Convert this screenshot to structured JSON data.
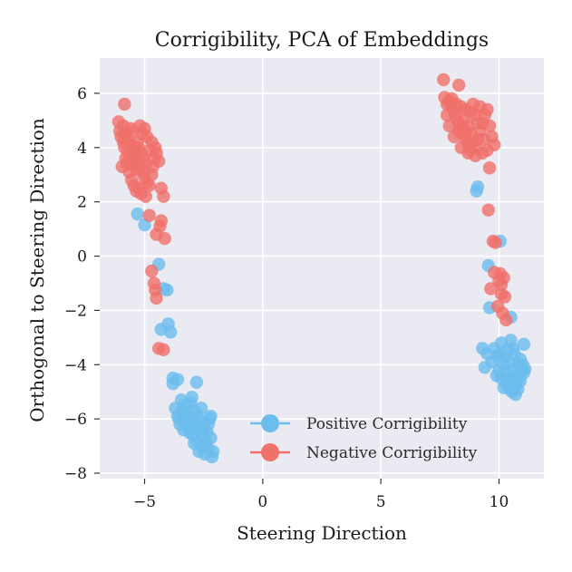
{
  "chart_data": {
    "type": "scatter",
    "title": "Corrigibility, PCA of Embeddings",
    "xlabel": "Steering Direction",
    "ylabel": "Orthogonal to Steering Direction",
    "xlim": [
      -6.9,
      11.9
    ],
    "ylim": [
      -8.2,
      7.3
    ],
    "xticks": [
      -5,
      0,
      5,
      10
    ],
    "xtick_labels": [
      "−5",
      "0",
      "5",
      "10"
    ],
    "yticks": [
      -8,
      -6,
      -4,
      -2,
      0,
      2,
      4,
      6
    ],
    "ytick_labels": [
      "−8",
      "−6",
      "−4",
      "−2",
      "0",
      "2",
      "4",
      "6"
    ],
    "grid": true,
    "legend_position": "lower-right",
    "series": [
      {
        "name": "Positive Corrigibility",
        "color": "#6cbdee",
        "points": [
          [
            -5.3,
            1.55
          ],
          [
            -5.0,
            1.15
          ],
          [
            -4.4,
            -0.3
          ],
          [
            -4.2,
            -1.2
          ],
          [
            -4.05,
            -1.25
          ],
          [
            -4.3,
            -2.7
          ],
          [
            -4.0,
            -2.5
          ],
          [
            -3.9,
            -2.8
          ],
          [
            -3.8,
            -4.7
          ],
          [
            -3.8,
            -4.5
          ],
          [
            -3.6,
            -4.55
          ],
          [
            -2.8,
            -4.65
          ],
          [
            -3.7,
            -5.6
          ],
          [
            -3.6,
            -5.9
          ],
          [
            -3.55,
            -6.0
          ],
          [
            -3.45,
            -5.3
          ],
          [
            -3.4,
            -5.7
          ],
          [
            -3.3,
            -5.5
          ],
          [
            -3.25,
            -6.1
          ],
          [
            -3.2,
            -6.3
          ],
          [
            -3.15,
            -5.8
          ],
          [
            -3.1,
            -6.5
          ],
          [
            -3.05,
            -5.4
          ],
          [
            -3.0,
            -6.0
          ],
          [
            -2.95,
            -6.6
          ],
          [
            -2.9,
            -5.7
          ],
          [
            -2.85,
            -6.2
          ],
          [
            -2.8,
            -6.8
          ],
          [
            -2.75,
            -5.9
          ],
          [
            -2.7,
            -6.4
          ],
          [
            -2.65,
            -6.1
          ],
          [
            -2.6,
            -7.0
          ],
          [
            -2.55,
            -6.6
          ],
          [
            -2.5,
            -6.3
          ],
          [
            -2.45,
            -7.3
          ],
          [
            -2.4,
            -6.9
          ],
          [
            -2.35,
            -6.5
          ],
          [
            -2.3,
            -7.1
          ],
          [
            -2.25,
            -6.0
          ],
          [
            -2.2,
            -6.7
          ],
          [
            -2.15,
            -7.4
          ],
          [
            -2.1,
            -7.2
          ],
          [
            -3.35,
            -6.4
          ],
          [
            -2.9,
            -6.9
          ],
          [
            -3.0,
            -5.2
          ],
          [
            -2.6,
            -5.6
          ],
          [
            -2.3,
            -6.2
          ],
          [
            -2.2,
            -5.9
          ],
          [
            -3.5,
            -6.2
          ],
          [
            -2.7,
            -7.2
          ],
          [
            9.1,
            2.55
          ],
          [
            9.05,
            2.4
          ],
          [
            10.05,
            0.55
          ],
          [
            9.55,
            -0.35
          ],
          [
            9.6,
            -1.9
          ],
          [
            10.5,
            -2.25
          ],
          [
            10.1,
            -3.2
          ],
          [
            9.8,
            -3.4
          ],
          [
            9.3,
            -3.4
          ],
          [
            10.5,
            -3.1
          ],
          [
            11.05,
            -3.25
          ],
          [
            9.5,
            -3.6
          ],
          [
            9.7,
            -3.9
          ],
          [
            9.4,
            -4.1
          ],
          [
            9.9,
            -4.4
          ],
          [
            10.2,
            -4.0
          ],
          [
            10.3,
            -4.3
          ],
          [
            10.4,
            -3.9
          ],
          [
            10.5,
            -4.6
          ],
          [
            10.6,
            -4.2
          ],
          [
            10.65,
            -3.6
          ],
          [
            10.7,
            -4.8
          ],
          [
            10.75,
            -4.4
          ],
          [
            10.8,
            -4.0
          ],
          [
            10.85,
            -4.5
          ],
          [
            10.9,
            -3.8
          ],
          [
            10.95,
            -4.2
          ],
          [
            11.0,
            -4.0
          ],
          [
            11.05,
            -4.3
          ],
          [
            11.1,
            -4.15
          ],
          [
            10.55,
            -5.0
          ],
          [
            10.45,
            -4.9
          ],
          [
            10.3,
            -4.7
          ],
          [
            10.25,
            -3.7
          ],
          [
            10.1,
            -4.5
          ],
          [
            10.0,
            -4.2
          ],
          [
            9.95,
            -3.7
          ],
          [
            10.6,
            -3.4
          ],
          [
            10.8,
            -4.9
          ],
          [
            10.7,
            -5.1
          ],
          [
            10.4,
            -4.5
          ],
          [
            10.9,
            -4.6
          ],
          [
            10.2,
            -4.85
          ],
          [
            10.0,
            -3.6
          ],
          [
            10.35,
            -3.45
          ]
        ]
      },
      {
        "name": "Negative Corrigibility",
        "color": "#f0716a",
        "points": [
          [
            -5.85,
            5.6
          ],
          [
            -6.1,
            4.95
          ],
          [
            -5.9,
            4.8
          ],
          [
            -5.8,
            4.5
          ],
          [
            -5.7,
            4.3
          ],
          [
            -5.6,
            4.1
          ],
          [
            -5.5,
            3.9
          ],
          [
            -5.4,
            3.7
          ],
          [
            -5.3,
            3.5
          ],
          [
            -5.2,
            3.3
          ],
          [
            -5.1,
            3.1
          ],
          [
            -5.0,
            2.9
          ],
          [
            -4.9,
            2.7
          ],
          [
            -5.75,
            3.4
          ],
          [
            -5.65,
            3.1
          ],
          [
            -5.55,
            2.8
          ],
          [
            -5.45,
            2.6
          ],
          [
            -5.35,
            2.4
          ],
          [
            -5.25,
            2.5
          ],
          [
            -5.15,
            2.3
          ],
          [
            -4.95,
            2.2
          ],
          [
            -4.8,
            2.6
          ],
          [
            -4.7,
            3.0
          ],
          [
            -4.65,
            3.3
          ],
          [
            -4.6,
            3.6
          ],
          [
            -4.55,
            4.0
          ],
          [
            -4.5,
            3.8
          ],
          [
            -4.7,
            4.2
          ],
          [
            -4.8,
            3.9
          ],
          [
            -4.9,
            4.4
          ],
          [
            -5.0,
            4.7
          ],
          [
            -5.1,
            4.5
          ],
          [
            -5.2,
            4.8
          ],
          [
            -5.3,
            4.2
          ],
          [
            -5.4,
            4.0
          ],
          [
            -5.5,
            4.6
          ],
          [
            -5.6,
            4.7
          ],
          [
            -5.7,
            3.8
          ],
          [
            -5.8,
            3.6
          ],
          [
            -5.9,
            4.2
          ],
          [
            -6.0,
            4.4
          ],
          [
            -6.05,
            4.6
          ],
          [
            -5.95,
            3.3
          ],
          [
            -5.85,
            4.0
          ],
          [
            -5.05,
            3.6
          ],
          [
            -4.95,
            3.4
          ],
          [
            -5.15,
            3.8
          ],
          [
            -5.25,
            4.0
          ],
          [
            -5.35,
            3.2
          ],
          [
            -5.45,
            3.5
          ],
          [
            -4.4,
            3.5
          ],
          [
            -4.3,
            2.5
          ],
          [
            -4.2,
            2.2
          ],
          [
            -4.35,
            1.1
          ],
          [
            -4.5,
            0.8
          ],
          [
            -4.3,
            1.3
          ],
          [
            -4.15,
            0.65
          ],
          [
            -4.8,
            1.5
          ],
          [
            -4.7,
            -0.55
          ],
          [
            -4.6,
            -1.0
          ],
          [
            -4.55,
            -1.25
          ],
          [
            -4.5,
            -1.55
          ],
          [
            -4.4,
            -3.4
          ],
          [
            -4.2,
            -3.45
          ],
          [
            7.65,
            6.5
          ],
          [
            8.3,
            6.3
          ],
          [
            7.7,
            5.85
          ],
          [
            7.8,
            5.6
          ],
          [
            7.9,
            5.7
          ],
          [
            8.0,
            5.5
          ],
          [
            8.1,
            5.3
          ],
          [
            8.2,
            5.1
          ],
          [
            8.3,
            4.9
          ],
          [
            8.4,
            4.7
          ],
          [
            8.5,
            4.5
          ],
          [
            8.6,
            4.3
          ],
          [
            8.7,
            4.1
          ],
          [
            8.8,
            3.9
          ],
          [
            8.9,
            4.2
          ],
          [
            9.0,
            4.0
          ],
          [
            9.1,
            4.3
          ],
          [
            9.2,
            4.6
          ],
          [
            9.3,
            4.9
          ],
          [
            9.4,
            5.2
          ],
          [
            9.5,
            5.4
          ],
          [
            9.6,
            4.8
          ],
          [
            9.7,
            4.4
          ],
          [
            9.8,
            4.1
          ],
          [
            9.5,
            3.9
          ],
          [
            9.3,
            3.8
          ],
          [
            9.0,
            3.7
          ],
          [
            8.7,
            3.8
          ],
          [
            8.4,
            4.0
          ],
          [
            8.1,
            4.4
          ],
          [
            7.9,
            4.8
          ],
          [
            7.8,
            5.2
          ],
          [
            8.0,
            5.8
          ],
          [
            8.2,
            5.6
          ],
          [
            8.4,
            5.5
          ],
          [
            8.6,
            5.4
          ],
          [
            8.8,
            5.3
          ],
          [
            9.0,
            5.2
          ],
          [
            9.2,
            5.5
          ],
          [
            8.9,
            5.6
          ],
          [
            8.5,
            5.0
          ],
          [
            8.7,
            4.8
          ],
          [
            8.3,
            4.6
          ],
          [
            9.1,
            4.9
          ],
          [
            9.35,
            4.3
          ],
          [
            8.6,
            4.6
          ],
          [
            8.8,
            4.5
          ],
          [
            9.6,
            3.25
          ],
          [
            9.55,
            1.7
          ],
          [
            9.75,
            0.55
          ],
          [
            9.85,
            0.5
          ],
          [
            10.05,
            -0.65
          ],
          [
            10.1,
            -1.05
          ],
          [
            10.0,
            -0.9
          ],
          [
            9.8,
            -0.6
          ],
          [
            10.2,
            -0.8
          ],
          [
            9.65,
            -1.2
          ],
          [
            10.25,
            -1.5
          ],
          [
            10.1,
            -1.4
          ],
          [
            9.95,
            -1.85
          ],
          [
            10.3,
            -2.35
          ],
          [
            10.15,
            -2.1
          ]
        ]
      }
    ]
  }
}
